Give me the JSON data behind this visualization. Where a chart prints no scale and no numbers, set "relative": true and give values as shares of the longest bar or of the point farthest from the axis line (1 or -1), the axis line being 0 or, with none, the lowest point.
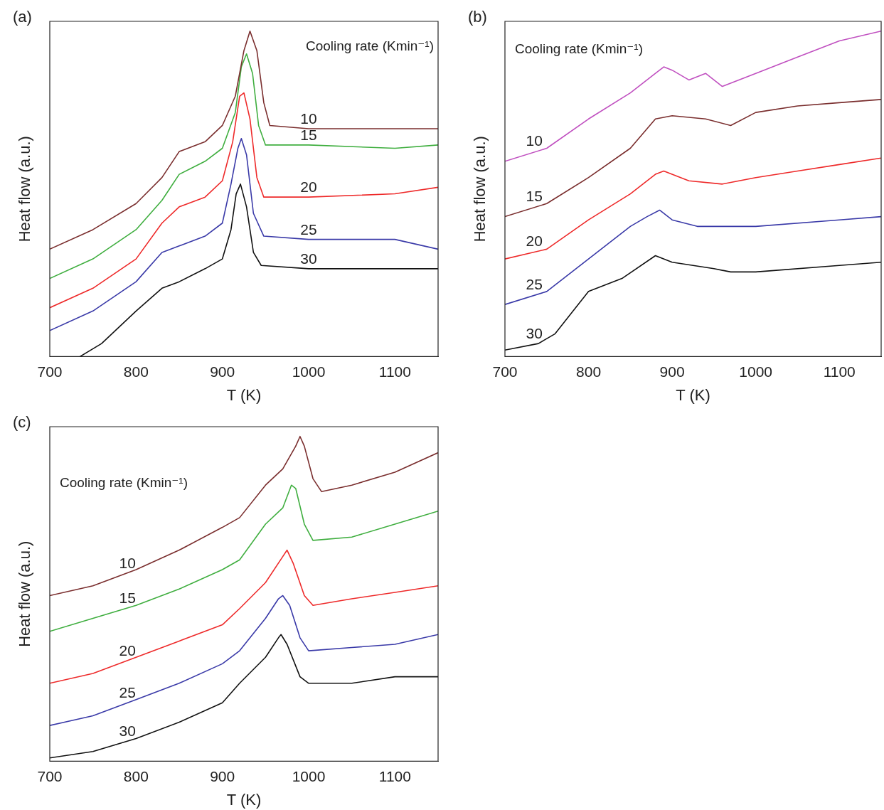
{
  "chart_data": [
    {
      "type": "line",
      "title": "(a)",
      "xlabel": "T (K)",
      "ylabel": "Heat flow (a.u.)",
      "legend_title": "Cooling rate (Kmin⁻¹)",
      "relative": true,
      "xlim": [
        700,
        1150
      ],
      "xticks": [
        700,
        800,
        900,
        1000,
        1100
      ],
      "series": [
        {
          "name": "10",
          "color": "#7a2e2e",
          "x": [
            700,
            750,
            800,
            830,
            850,
            880,
            900,
            915,
            925,
            932,
            940,
            948,
            955,
            1000,
            1100,
            1150
          ],
          "values": [
            0.33,
            0.39,
            0.47,
            0.55,
            0.63,
            0.66,
            0.71,
            0.8,
            0.94,
            1.0,
            0.94,
            0.78,
            0.71,
            0.7,
            0.7,
            0.7
          ]
        },
        {
          "name": "15",
          "color": "#3fae3f",
          "x": [
            700,
            750,
            800,
            830,
            850,
            880,
            900,
            915,
            922,
            928,
            935,
            942,
            950,
            1000,
            1100,
            1150
          ],
          "values": [
            0.24,
            0.3,
            0.39,
            0.48,
            0.56,
            0.6,
            0.64,
            0.75,
            0.89,
            0.93,
            0.87,
            0.71,
            0.65,
            0.65,
            0.64,
            0.65
          ]
        },
        {
          "name": "20",
          "color": "#ee2a2a",
          "x": [
            700,
            750,
            800,
            830,
            850,
            880,
            900,
            912,
            920,
            925,
            932,
            940,
            948,
            1000,
            1100,
            1150
          ],
          "values": [
            0.15,
            0.21,
            0.3,
            0.41,
            0.46,
            0.49,
            0.54,
            0.66,
            0.8,
            0.81,
            0.73,
            0.55,
            0.49,
            0.49,
            0.5,
            0.52
          ]
        },
        {
          "name": "25",
          "color": "#3a3aa8",
          "x": [
            700,
            750,
            800,
            830,
            850,
            880,
            900,
            910,
            918,
            922,
            928,
            936,
            948,
            1000,
            1100,
            1150
          ],
          "values": [
            0.08,
            0.14,
            0.23,
            0.32,
            0.34,
            0.37,
            0.41,
            0.53,
            0.64,
            0.67,
            0.62,
            0.44,
            0.37,
            0.36,
            0.36,
            0.33
          ]
        },
        {
          "name": "30",
          "color": "#111111",
          "x": [
            735,
            760,
            800,
            830,
            850,
            880,
            900,
            910,
            916,
            921,
            928,
            936,
            945,
            1000,
            1100,
            1150
          ],
          "values": [
            0,
            0.04,
            0.14,
            0.21,
            0.23,
            0.27,
            0.3,
            0.39,
            0.5,
            0.53,
            0.46,
            0.32,
            0.28,
            0.27,
            0.27,
            0.27
          ]
        }
      ]
    },
    {
      "type": "line",
      "title": "(b)",
      "xlabel": "T (K)",
      "ylabel": "Heat flow (a.u.)",
      "legend_title": "Cooling rate (Kmin⁻¹)",
      "relative": true,
      "xlim": [
        700,
        1150
      ],
      "xticks": [
        700,
        800,
        900,
        1000,
        1100
      ],
      "series": [
        {
          "name": "10",
          "color": "#c050c0",
          "x": [
            700,
            750,
            800,
            850,
            880,
            890,
            900,
            920,
            940,
            960,
            1000,
            1050,
            1100,
            1150
          ],
          "values": [
            0.6,
            0.64,
            0.73,
            0.81,
            0.87,
            0.89,
            0.88,
            0.85,
            0.87,
            0.83,
            0.87,
            0.92,
            0.97,
            1.0
          ]
        },
        {
          "name": "15",
          "color": "#7a2e2e",
          "x": [
            700,
            750,
            800,
            850,
            880,
            900,
            940,
            970,
            1000,
            1050,
            1100,
            1150
          ],
          "values": [
            0.43,
            0.47,
            0.55,
            0.64,
            0.73,
            0.74,
            0.73,
            0.71,
            0.75,
            0.77,
            0.78,
            0.79
          ]
        },
        {
          "name": "20",
          "color": "#ee2a2a",
          "x": [
            700,
            750,
            800,
            850,
            880,
            890,
            920,
            960,
            1000,
            1050,
            1100,
            1150
          ],
          "values": [
            0.3,
            0.33,
            0.42,
            0.5,
            0.56,
            0.57,
            0.54,
            0.53,
            0.55,
            0.57,
            0.59,
            0.61
          ]
        },
        {
          "name": "25",
          "color": "#3a3aa8",
          "x": [
            700,
            750,
            800,
            850,
            870,
            885,
            900,
            930,
            1000,
            1100,
            1150
          ],
          "values": [
            0.16,
            0.2,
            0.3,
            0.4,
            0.43,
            0.45,
            0.42,
            0.4,
            0.4,
            0.42,
            0.43
          ]
        },
        {
          "name": "30",
          "color": "#111111",
          "x": [
            700,
            740,
            760,
            800,
            840,
            880,
            900,
            950,
            970,
            1000,
            1100,
            1150
          ],
          "values": [
            0.02,
            0.04,
            0.07,
            0.2,
            0.24,
            0.31,
            0.29,
            0.27,
            0.26,
            0.26,
            0.28,
            0.29
          ]
        }
      ]
    },
    {
      "type": "line",
      "title": "(c)",
      "xlabel": "T (K)",
      "ylabel": "Heat flow (a.u.)",
      "legend_title": "Cooling rate (Kmin⁻¹)",
      "relative": true,
      "xlim": [
        700,
        1150
      ],
      "xticks": [
        700,
        800,
        900,
        1000,
        1100
      ],
      "series": [
        {
          "name": "10",
          "color": "#7a2e2e",
          "x": [
            700,
            750,
            800,
            850,
            900,
            920,
            950,
            970,
            985,
            990,
            995,
            1005,
            1015,
            1050,
            1100,
            1150
          ],
          "values": [
            0.51,
            0.54,
            0.59,
            0.65,
            0.72,
            0.75,
            0.85,
            0.9,
            0.97,
            1.0,
            0.97,
            0.87,
            0.83,
            0.85,
            0.89,
            0.95
          ]
        },
        {
          "name": "15",
          "color": "#3fae3f",
          "x": [
            700,
            750,
            800,
            850,
            900,
            920,
            950,
            970,
            980,
            985,
            995,
            1005,
            1050,
            1100,
            1150
          ],
          "values": [
            0.4,
            0.44,
            0.48,
            0.53,
            0.59,
            0.62,
            0.73,
            0.78,
            0.85,
            0.84,
            0.73,
            0.68,
            0.69,
            0.73,
            0.77
          ]
        },
        {
          "name": "20",
          "color": "#ee2a2a",
          "x": [
            700,
            750,
            800,
            850,
            900,
            920,
            950,
            970,
            975,
            982,
            995,
            1005,
            1050,
            1100,
            1150
          ],
          "values": [
            0.24,
            0.27,
            0.32,
            0.37,
            0.42,
            0.47,
            0.55,
            0.63,
            0.65,
            0.61,
            0.51,
            0.48,
            0.5,
            0.52,
            0.54
          ]
        },
        {
          "name": "25",
          "color": "#3a3aa8",
          "x": [
            700,
            750,
            800,
            850,
            900,
            920,
            950,
            965,
            970,
            978,
            990,
            1000,
            1050,
            1100,
            1150
          ],
          "values": [
            0.11,
            0.14,
            0.19,
            0.24,
            0.3,
            0.34,
            0.44,
            0.5,
            0.51,
            0.48,
            0.38,
            0.34,
            0.35,
            0.36,
            0.39
          ]
        },
        {
          "name": "30",
          "color": "#111111",
          "x": [
            700,
            750,
            800,
            850,
            900,
            920,
            950,
            965,
            968,
            975,
            990,
            1000,
            1050,
            1100,
            1150
          ],
          "values": [
            0.01,
            0.03,
            0.07,
            0.12,
            0.18,
            0.24,
            0.32,
            0.38,
            0.39,
            0.36,
            0.26,
            0.24,
            0.24,
            0.26,
            0.26
          ]
        }
      ]
    }
  ]
}
